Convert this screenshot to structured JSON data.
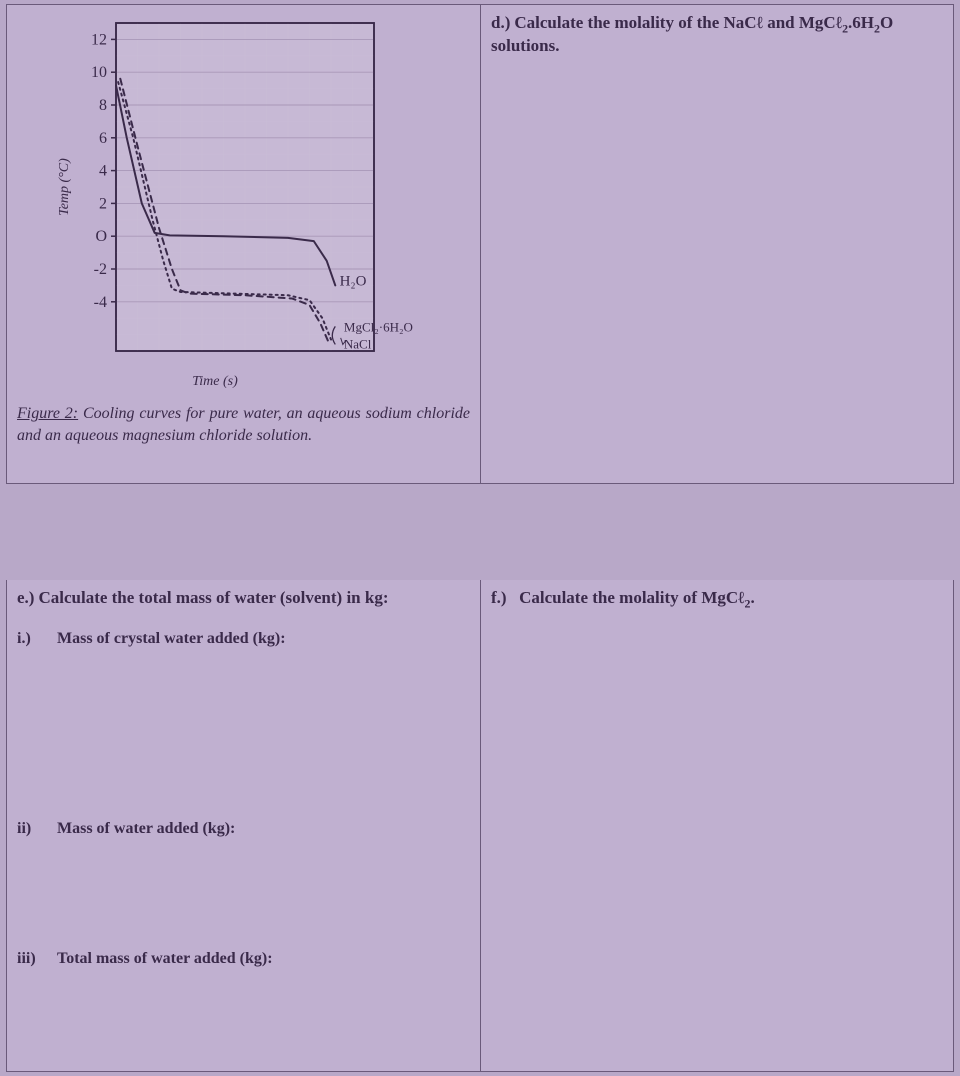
{
  "questions": {
    "d": {
      "label": "d.)",
      "text": "Calculate the molality of the NaCℓ and MgCℓ₂.6H₂O solutions."
    },
    "e": {
      "label": "e.)",
      "text": "Calculate the total mass of water (solvent) in kg:",
      "subs": {
        "i": {
          "label": "i.)",
          "text": "Mass of crystal water added (kg):"
        },
        "ii": {
          "label": "ii)",
          "text": "Mass of water added (kg):"
        },
        "iii": {
          "label": "iii)",
          "text": "Total mass of water added (kg):"
        }
      }
    },
    "f": {
      "label": "f.)",
      "text": "Calculate the molality of MgCℓ₂."
    }
  },
  "figure_caption": {
    "title": "Figure 2:",
    "body": " Cooling curves for pure water, an aqueous sodium chloride and an aqueous magnesium chloride solution."
  },
  "chart": {
    "type": "line",
    "bg_grid_minor": "#c9bcd6",
    "bg_grid_major": "#a898b8",
    "axis_color": "#3a2a4a",
    "plot_bg": "#c7b9d5",
    "y_label": "Temp (°C)",
    "x_label": "Time (s)",
    "y_label_fontsize": 14,
    "x_label_fontsize": 14,
    "ylim": [
      -7,
      13
    ],
    "y_ticks": [
      -4,
      -2,
      0,
      2,
      4,
      6,
      8,
      10,
      12
    ],
    "y_tick_labels": [
      "-4",
      "-2",
      "O",
      "2",
      "4",
      "6",
      "8",
      "10",
      "12"
    ],
    "xlim": [
      0,
      12
    ],
    "tick_font": "handwritten",
    "tick_fontsize": 16,
    "curve_labels": {
      "h2o": "H₂O",
      "mgcl": "MgCl₂·6H₂O",
      "nacl": "NaCl"
    },
    "series": [
      {
        "name": "H2O",
        "color": "#3a2a4a",
        "style": "solid",
        "line_width": 2,
        "points": [
          [
            0,
            9.2
          ],
          [
            0.5,
            6.0
          ],
          [
            1.2,
            2.0
          ],
          [
            1.8,
            0.2
          ],
          [
            2.5,
            0.05
          ],
          [
            5.0,
            0.0
          ],
          [
            8.0,
            -0.1
          ],
          [
            9.2,
            -0.3
          ],
          [
            9.8,
            -1.5
          ],
          [
            10.2,
            -3.0
          ]
        ]
      },
      {
        "name": "NaCl",
        "color": "#3a2a4a",
        "style": "dotted",
        "line_width": 2,
        "points": [
          [
            0.1,
            9.4
          ],
          [
            0.8,
            6.0
          ],
          [
            1.7,
            1.0
          ],
          [
            2.2,
            -1.5
          ],
          [
            2.6,
            -3.2
          ],
          [
            3.0,
            -3.4
          ],
          [
            5.5,
            -3.5
          ],
          [
            8.0,
            -3.6
          ],
          [
            9.0,
            -3.9
          ],
          [
            9.6,
            -5.0
          ],
          [
            10.0,
            -6.3
          ]
        ]
      },
      {
        "name": "MgCl2",
        "color": "#3a2a4a",
        "style": "dashed",
        "line_width": 2,
        "points": [
          [
            0.2,
            9.6
          ],
          [
            1.0,
            5.5
          ],
          [
            2.0,
            0.5
          ],
          [
            2.6,
            -2.0
          ],
          [
            3.0,
            -3.3
          ],
          [
            3.4,
            -3.5
          ],
          [
            6.0,
            -3.6
          ],
          [
            8.2,
            -3.8
          ],
          [
            9.0,
            -4.2
          ],
          [
            9.5,
            -5.3
          ],
          [
            9.9,
            -6.5
          ]
        ]
      }
    ]
  },
  "colors": {
    "page_bg": "#b8a8c8",
    "cell_bg": "#c0b0d0",
    "border": "#6a5a7a",
    "text": "#3a2a4a"
  }
}
